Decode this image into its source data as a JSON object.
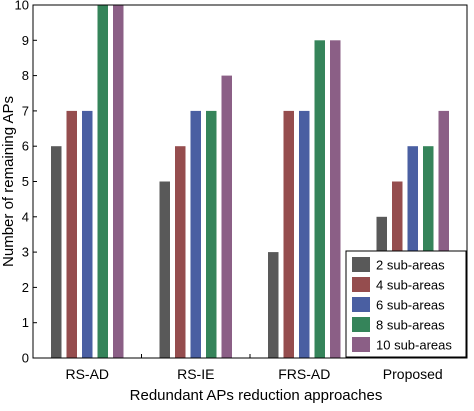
{
  "chart_data": {
    "type": "bar",
    "title": "",
    "xlabel": "Redundant APs reduction approaches",
    "ylabel": "Number of remaining APs",
    "ylim": [
      0,
      10
    ],
    "yticks": [
      0,
      1,
      2,
      3,
      4,
      5,
      6,
      7,
      8,
      9,
      10
    ],
    "grid": false,
    "legend_position": "bottom-right",
    "categories": [
      "RS-AD",
      "RS-IE",
      "FRS-AD",
      "Proposed"
    ],
    "series": [
      {
        "name": "2 sub-areas",
        "color": "#595959",
        "values": [
          6,
          5,
          3,
          4
        ]
      },
      {
        "name": "4 sub-areas",
        "color": "#954d4e",
        "values": [
          7,
          6,
          7,
          5
        ]
      },
      {
        "name": "6 sub-areas",
        "color": "#4a5fa2",
        "values": [
          7,
          7,
          7,
          6
        ]
      },
      {
        "name": "8 sub-areas",
        "color": "#35845a",
        "values": [
          10,
          7,
          9,
          6
        ]
      },
      {
        "name": "10 sub-areas",
        "color": "#8b5f86",
        "values": [
          10,
          8,
          9,
          7
        ]
      }
    ]
  }
}
